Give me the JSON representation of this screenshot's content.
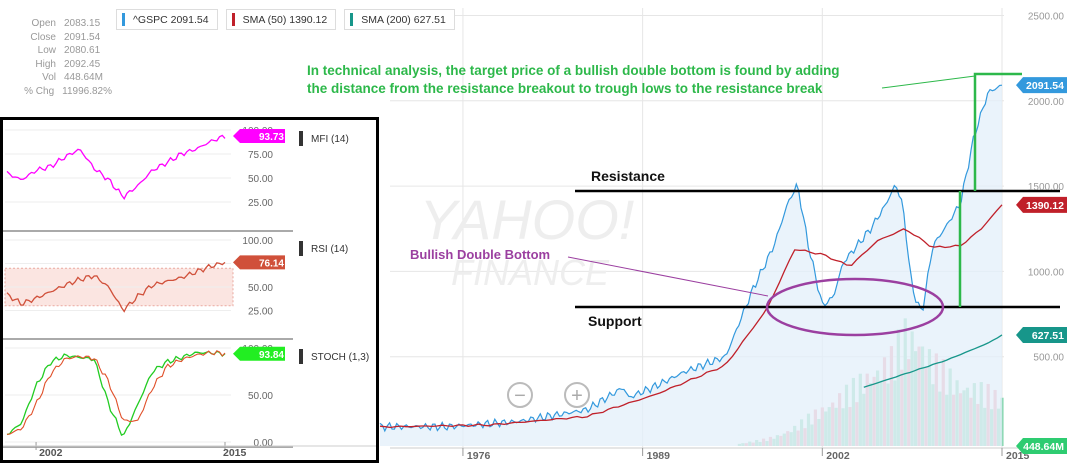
{
  "stats": [
    {
      "label": "Open",
      "value": "2083.15"
    },
    {
      "label": "Close",
      "value": "2091.54"
    },
    {
      "label": "Low",
      "value": "2080.61"
    },
    {
      "label": "High",
      "value": "2092.45"
    },
    {
      "label": "Vol",
      "value": "448.64M"
    },
    {
      "label": "% Chg",
      "value": "11996.82%"
    }
  ],
  "legend": [
    {
      "text": "^GSPC 2091.54",
      "color": "#3399dd"
    },
    {
      "text": "SMA (50) 1390.12",
      "color": "#c0202a"
    },
    {
      "text": "SMA (200) 627.51",
      "color": "#17968a"
    }
  ],
  "annotation": {
    "line1": "In technical analysis, the target price of a bullish double bottom is found by adding",
    "line2": "the distance from the resistance breakout to trough lows to the resistance break"
  },
  "labels": {
    "resistance": "Resistance",
    "support": "Support",
    "double_bottom": "Bullish Double Bottom"
  },
  "watermark": {
    "line1": "YAHOO!",
    "line2": "FINANCE"
  },
  "zoom": {
    "minus": "−",
    "plus": "+"
  },
  "colors": {
    "price": "#3399dd",
    "sma50": "#c0202a",
    "sma200": "#17968a",
    "annotation": "#2db84a",
    "pattern": "#9b3fa0",
    "mfi": "#ff00ff",
    "rsi": "#d0503a",
    "stoch_k": "#22cc22",
    "stoch_d": "#e0502a",
    "volume_up": "#8fd9b6",
    "volume_down": "#f4a3b0"
  },
  "chart_data": [
    {
      "type": "line",
      "x_tick_labels": [
        "1976",
        "1989",
        "2002",
        "2015"
      ],
      "y_tick_labels": [
        "2500.00",
        "2000.00",
        "1500.00",
        "1000.00",
        "500.00"
      ],
      "ylim": [
        0,
        2500
      ],
      "series": [
        {
          "name": "^GSPC",
          "last_value": "2091.54",
          "x": [
            1970,
            1975,
            1980,
            1985,
            1987.6,
            1988,
            1990,
            1992,
            1995,
            1997,
            1998.5,
            1999.5,
            2000.2,
            2001,
            2002,
            2002.8,
            2003.5,
            2004.5,
            2005.5,
            2006.5,
            2007.3,
            2007.8,
            2008.5,
            2009.2,
            2010,
            2011,
            2012,
            2013,
            2014,
            2015
          ],
          "y": [
            90,
            90,
            120,
            190,
            320,
            260,
            330,
            410,
            500,
            900,
            1150,
            1400,
            1510,
            1150,
            800,
            850,
            1050,
            1150,
            1250,
            1380,
            1510,
            1400,
            900,
            750,
            1150,
            1270,
            1400,
            1800,
            2050,
            2091.54
          ]
        },
        {
          "name": "SMA (50)",
          "last_value": "1390.12",
          "x": [
            1970,
            1978,
            1985,
            1990,
            1995,
            1998,
            2000,
            2002,
            2004,
            2006,
            2008,
            2010,
            2012,
            2013.5,
            2015
          ],
          "y": [
            88,
            100,
            150,
            280,
            450,
            780,
            1130,
            1100,
            1030,
            1180,
            1250,
            1140,
            1150,
            1250,
            1390.12
          ]
        },
        {
          "name": "SMA (200)",
          "last_value": "627.51",
          "x": [
            2005,
            2008,
            2011,
            2014,
            2015
          ],
          "y": [
            320,
            400,
            480,
            580,
            627.51
          ]
        }
      ],
      "volume": {
        "last_value": "448.64M",
        "x": [
          1996,
          1997,
          1998,
          1999,
          2000,
          2001,
          2002,
          2003,
          2004,
          2005,
          2006,
          2007,
          2008,
          2009,
          2010,
          2011,
          2012,
          2013,
          2014,
          2015
        ],
        "relative": [
          0.02,
          0.04,
          0.06,
          0.1,
          0.16,
          0.24,
          0.32,
          0.4,
          0.48,
          0.58,
          0.66,
          0.75,
          0.98,
          0.92,
          0.72,
          0.62,
          0.52,
          0.5,
          0.46,
          0.4
        ]
      },
      "levels": {
        "resistance": 1500,
        "support": 810,
        "target": 2210
      },
      "annotations": [
        "Resistance",
        "Support",
        "Bullish Double Bottom"
      ]
    },
    {
      "type": "line",
      "x_tick_labels": [
        "2002",
        "2015"
      ],
      "indicators": [
        {
          "name": "MFI (14)",
          "last_value": "93.73",
          "y_ticks": [
            "100.00",
            "75.00",
            "50.00",
            "25.00"
          ],
          "x": [
            2000,
            2001,
            2002,
            2003,
            2004,
            2005,
            2006,
            2007,
            2008,
            2009,
            2010,
            2011,
            2012,
            2013,
            2014,
            2015
          ],
          "y": [
            55,
            48,
            58,
            62,
            72,
            80,
            60,
            48,
            30,
            42,
            58,
            66,
            75,
            80,
            88,
            93.73
          ]
        },
        {
          "name": "RSI (14)",
          "last_value": "76.14",
          "y_ticks": [
            "100.00",
            "75.00",
            "50.00",
            "25.00"
          ],
          "x": [
            2000,
            2001,
            2002,
            2003,
            2004,
            2005,
            2006,
            2007,
            2008,
            2009,
            2010,
            2011,
            2012,
            2013,
            2014,
            2015
          ],
          "y": [
            42,
            32,
            38,
            45,
            52,
            58,
            62,
            50,
            25,
            40,
            52,
            56,
            60,
            66,
            72,
            76.14
          ]
        },
        {
          "name": "STOCH (1,3)",
          "last_value": "93.84",
          "y_ticks": [
            "100.00",
            "50.00",
            "0.00"
          ],
          "x": [
            2000,
            2001,
            2002,
            2003,
            2004,
            2005,
            2006,
            2007,
            2008,
            2009,
            2010,
            2011,
            2012,
            2013,
            2014,
            2015
          ],
          "y": [
            8,
            20,
            60,
            85,
            92,
            90,
            88,
            40,
            5,
            40,
            75,
            85,
            90,
            95,
            95,
            93.84
          ]
        }
      ]
    }
  ]
}
